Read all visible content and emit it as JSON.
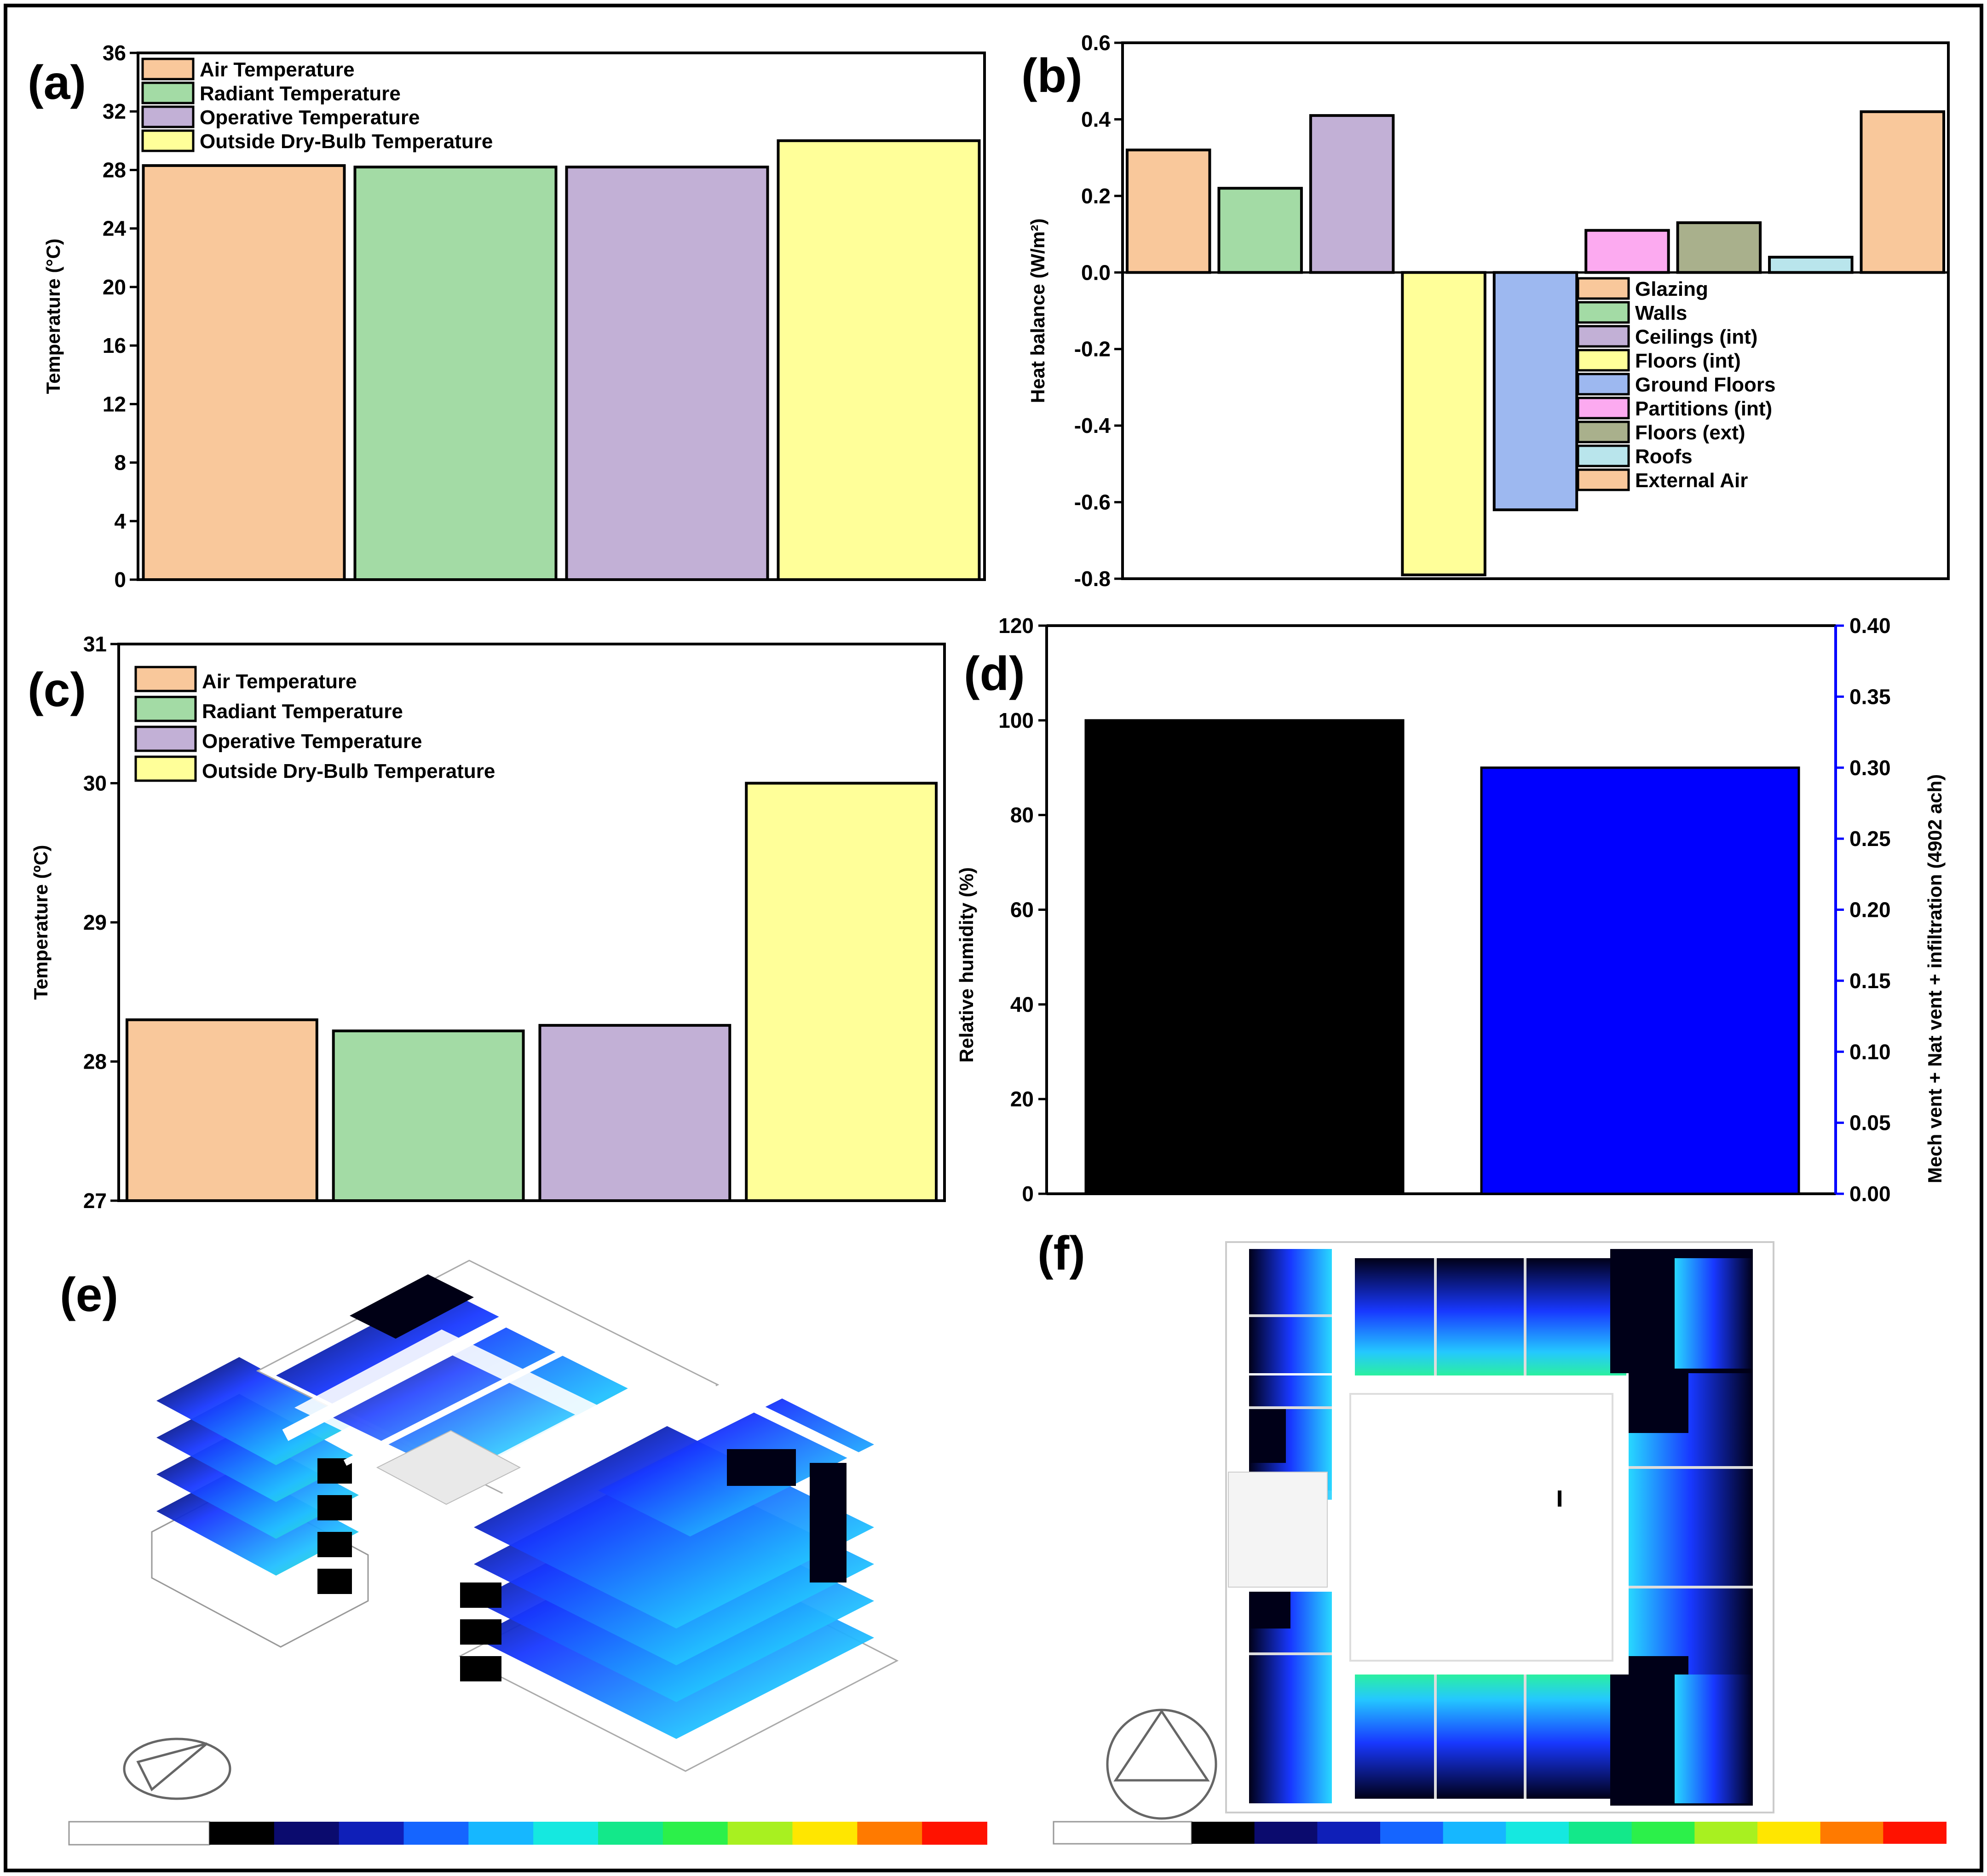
{
  "figure": {
    "panel_labels": [
      "(a)",
      "(b)",
      "(c)",
      "(d)",
      "(e)",
      "(f)"
    ]
  },
  "chart_data": [
    {
      "id": "a",
      "type": "bar",
      "categories": [
        "Air Temperature",
        "Radiant Temperature",
        "Operative Temperature",
        "Outside Dry-Bulb Temperature"
      ],
      "values": [
        28.3,
        28.2,
        28.2,
        30.0
      ],
      "colors": [
        "#f9c89b",
        "#a3dba5",
        "#c2b0d6",
        "#ffff99"
      ],
      "ylabel": "Temperature (°C)",
      "ylim": [
        0,
        36
      ],
      "yticks": [
        0,
        4,
        8,
        12,
        16,
        20,
        24,
        28,
        32,
        36
      ],
      "legend": "top-left"
    },
    {
      "id": "b",
      "type": "bar",
      "categories": [
        "Glazing",
        "Walls",
        "Ceilings (int)",
        "Floors (int)",
        "Ground Floors",
        "Partitions (int)",
        "Floors (ext)",
        "Roofs",
        "External Air"
      ],
      "values": [
        0.32,
        0.22,
        0.41,
        -0.79,
        -0.62,
        0.11,
        0.13,
        0.04,
        0.42
      ],
      "colors": [
        "#f9c89b",
        "#a3dba5",
        "#c2b0d6",
        "#ffff99",
        "#9db8f0",
        "#fcaaf0",
        "#a9b08c",
        "#b9e5ec",
        "#f9c89b"
      ],
      "ylabel": "Heat balance (W/m²)",
      "ylim": [
        -0.8,
        0.6
      ],
      "yticks": [
        -0.8,
        -0.6,
        -0.4,
        -0.2,
        0.0,
        0.2,
        0.4,
        0.6
      ],
      "legend": "center-right"
    },
    {
      "id": "c",
      "type": "bar",
      "categories": [
        "Air Temperature",
        "Radiant Temperature",
        "Operative Temperature",
        "Outside Dry-Bulb Temperature"
      ],
      "values": [
        28.3,
        28.22,
        28.26,
        30.0
      ],
      "colors": [
        "#f9c89b",
        "#a3dba5",
        "#c2b0d6",
        "#ffff99"
      ],
      "ylabel": "Temperature (ºC)",
      "ylim": [
        27,
        31
      ],
      "yticks": [
        27,
        28,
        29,
        30,
        31
      ],
      "legend": "top-left"
    },
    {
      "id": "d",
      "type": "bar",
      "series": [
        {
          "name": "Relative humidity (%)",
          "axis": "left",
          "value": 100,
          "color": "#000000"
        },
        {
          "name": "Mech vent + Nat vent + infiltration (4902 ach)",
          "axis": "right",
          "value": 0.3,
          "color": "#0000ff"
        }
      ],
      "ylabel": "Relative humidity (%)",
      "ylabel_right": "Mech vent + Nat vent + infiltration (4902 ach)",
      "ylim": [
        0,
        120
      ],
      "ylim_right": [
        0,
        0.4
      ],
      "yticks": [
        0,
        20,
        40,
        60,
        80,
        100,
        120
      ],
      "yticks_right": [
        "0.00",
        "0.05",
        "0.10",
        "0.15",
        "0.20",
        "0.25",
        "0.30",
        "0.35",
        "0.40"
      ]
    }
  ],
  "images": {
    "e": {
      "description_name": "3d-building-daylight-render",
      "scale_steps": 12
    },
    "f": {
      "description_name": "floor-plan-daylight-render",
      "scale_steps": 12
    }
  },
  "colors": {
    "render_dark": "#000010",
    "render_mid": "#1b3cff",
    "render_light": "#27d6ff",
    "render_green": "#2bff7a",
    "scale": [
      "#000000",
      "#0b0b6e",
      "#0f1fb8",
      "#1565ff",
      "#16b7ff",
      "#15e8e0",
      "#13e88a",
      "#2cf04a",
      "#a8f020",
      "#ffe600",
      "#ff7a00",
      "#ff1200"
    ]
  }
}
